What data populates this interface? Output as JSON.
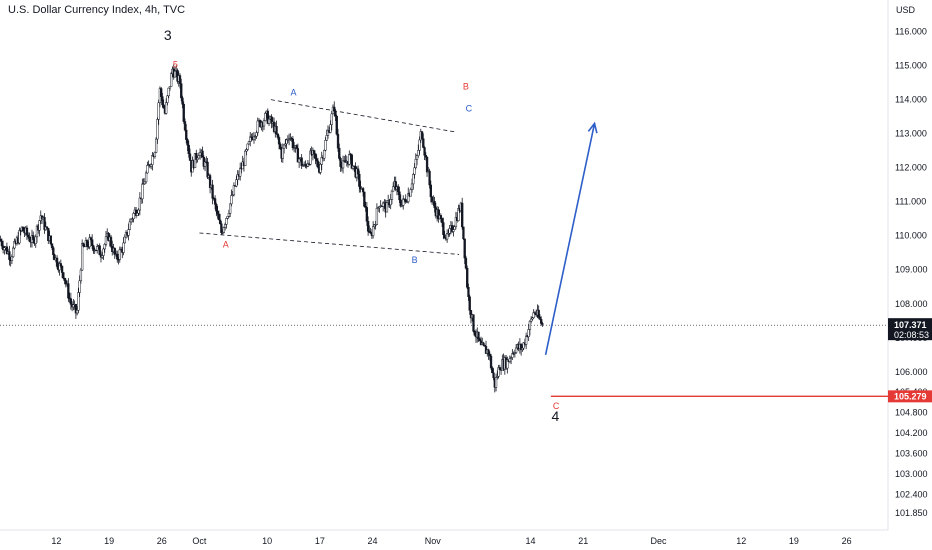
{
  "title": "U.S. Dollar Currency Index, 4h, TVC",
  "currency": "USD",
  "chart_data": {
    "type": "candlestick",
    "ylim": [
      101.35,
      116.4
    ],
    "y_ticks": [
      "116.000",
      "115.000",
      "114.000",
      "113.000",
      "112.000",
      "111.000",
      "110.000",
      "109.000",
      "108.000",
      "107.000",
      "106.000",
      "105.400",
      "104.800",
      "104.200",
      "103.600",
      "103.000",
      "102.400",
      "101.850"
    ],
    "y_tick_values": [
      116.0,
      115.0,
      114.0,
      113.0,
      112.0,
      111.0,
      110.0,
      109.0,
      108.0,
      107.0,
      106.0,
      105.4,
      104.8,
      104.2,
      103.6,
      103.0,
      102.4,
      101.85
    ],
    "x_ticks": [
      {
        "label": "12",
        "day": -6
      },
      {
        "label": "19",
        "day": 1
      },
      {
        "label": "26",
        "day": 8
      },
      {
        "label": "Oct",
        "day": 13
      },
      {
        "label": "10",
        "day": 22
      },
      {
        "label": "17",
        "day": 29
      },
      {
        "label": "24",
        "day": 36
      },
      {
        "label": "Nov",
        "day": 44
      },
      {
        "label": "14",
        "day": 57
      },
      {
        "label": "21",
        "day": 64
      },
      {
        "label": "Dec",
        "day": 74
      },
      {
        "label": "12",
        "day": 85
      },
      {
        "label": "19",
        "day": 92
      },
      {
        "label": "26",
        "day": 99
      }
    ],
    "x_range_days": [
      -13.5,
      104.5
    ],
    "last_price": {
      "value": 107.371,
      "label": "107.371",
      "countdown": "02:08:53",
      "color": "#131722"
    },
    "level": {
      "value": 105.279,
      "label": "105.279",
      "color": "#e53935"
    },
    "price_path": [
      [
        -13.5,
        109.9
      ],
      [
        -12,
        109.4
      ],
      [
        -10.5,
        110.2
      ],
      [
        -9,
        109.8
      ],
      [
        -8,
        110.6
      ],
      [
        -7,
        110.0
      ],
      [
        -6,
        109.3
      ],
      [
        -5,
        108.9
      ],
      [
        -4,
        108.0
      ],
      [
        -3.2,
        107.7
      ],
      [
        -2.5,
        109.6
      ],
      [
        -1.5,
        109.8
      ],
      [
        0,
        109.5
      ],
      [
        1,
        110.0
      ],
      [
        2,
        109.3
      ],
      [
        3,
        109.7
      ],
      [
        4,
        110.5
      ],
      [
        5,
        110.9
      ],
      [
        6,
        111.8
      ],
      [
        7.2,
        112.6
      ],
      [
        7.8,
        114.3
      ],
      [
        8.5,
        113.6
      ],
      [
        9.5,
        114.9
      ],
      [
        10.5,
        114.5
      ],
      [
        11,
        113.5
      ],
      [
        12,
        112.0
      ],
      [
        13,
        112.5
      ],
      [
        14,
        112.0
      ],
      [
        15,
        111.0
      ],
      [
        16,
        110.1
      ],
      [
        17,
        110.8
      ],
      [
        18,
        111.6
      ],
      [
        19,
        112.2
      ],
      [
        20,
        112.9
      ],
      [
        21,
        113.3
      ],
      [
        22,
        113.5
      ],
      [
        23,
        113.2
      ],
      [
        24,
        112.4
      ],
      [
        25,
        113.0
      ],
      [
        26,
        112.4
      ],
      [
        27,
        112.0
      ],
      [
        28,
        112.4
      ],
      [
        29,
        112.0
      ],
      [
        30,
        112.9
      ],
      [
        31,
        113.8
      ],
      [
        31.5,
        112.6
      ],
      [
        32,
        112.0
      ],
      [
        33,
        112.3
      ],
      [
        34,
        111.8
      ],
      [
        35,
        111.0
      ],
      [
        35.7,
        109.9
      ],
      [
        36.5,
        110.5
      ],
      [
        37,
        111.0
      ],
      [
        38,
        110.8
      ],
      [
        39,
        111.5
      ],
      [
        40,
        110.9
      ],
      [
        41,
        111.3
      ],
      [
        42,
        112.3
      ],
      [
        42.6,
        113.1
      ],
      [
        43.2,
        112.2
      ],
      [
        44,
        111.0
      ],
      [
        45,
        110.5
      ],
      [
        46,
        109.9
      ],
      [
        47,
        110.4
      ],
      [
        47.8,
        110.9
      ],
      [
        48.3,
        109.6
      ],
      [
        48.8,
        108.2
      ],
      [
        49.5,
        107.3
      ],
      [
        50.5,
        106.7
      ],
      [
        51.5,
        106.6
      ],
      [
        52.3,
        105.6
      ],
      [
        53,
        106.2
      ],
      [
        54,
        106.3
      ],
      [
        55,
        106.7
      ],
      [
        56,
        106.7
      ],
      [
        57.6,
        107.8
      ],
      [
        58.6,
        107.4
      ]
    ],
    "projection": {
      "from": [
        59,
        106.5
      ],
      "to": [
        65.5,
        113.3
      ],
      "color": "#2d5ec9"
    },
    "channel_upper": {
      "from": [
        22.5,
        114.0
      ],
      "to": [
        47,
        113.05
      ]
    },
    "channel_lower": {
      "from": [
        13,
        110.08
      ],
      "to": [
        47.5,
        109.45
      ]
    },
    "wave_labels": [
      {
        "text": "3",
        "day": 8.8,
        "price": 115.75,
        "color": "#131722",
        "size": 14
      },
      {
        "text": "5",
        "day": 9.8,
        "price": 114.95,
        "color": "#e53935",
        "size": 9
      },
      {
        "text": "A",
        "day": 16.5,
        "price": 109.65,
        "color": "#e53935",
        "size": 9
      },
      {
        "text": "A",
        "day": 25.5,
        "price": 114.12,
        "color": "#2d5ec9",
        "size": 9
      },
      {
        "text": "B",
        "day": 41.6,
        "price": 109.2,
        "color": "#2d5ec9",
        "size": 9
      },
      {
        "text": "B",
        "day": 48.4,
        "price": 114.3,
        "color": "#e53935",
        "size": 9
      },
      {
        "text": "C",
        "day": 48.8,
        "price": 113.65,
        "color": "#2d5ec9",
        "size": 9
      },
      {
        "text": "C",
        "day": 60.4,
        "price": 104.9,
        "color": "#e53935",
        "size": 9
      },
      {
        "text": "4",
        "day": 60.3,
        "price": 104.55,
        "color": "#131722",
        "size": 14
      }
    ]
  }
}
